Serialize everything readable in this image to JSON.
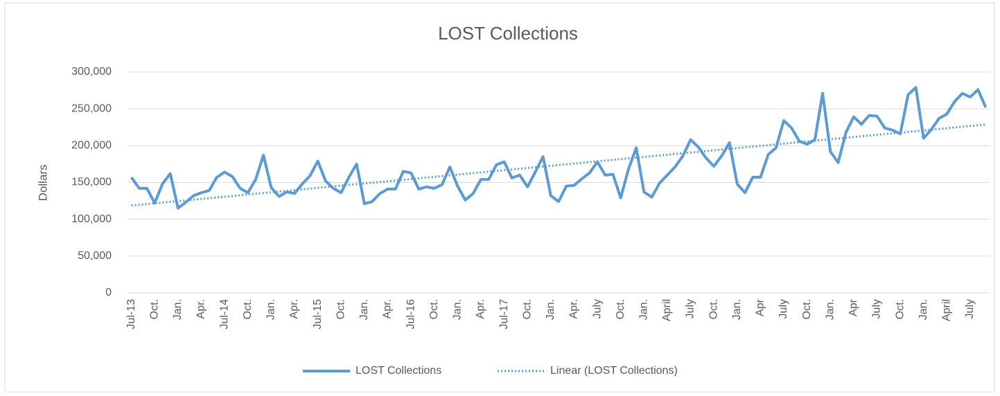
{
  "chart_data": {
    "type": "line",
    "title": "LOST Collections",
    "y_label": "Dollars",
    "categories": [
      "Jul-13",
      null,
      null,
      "Oct.",
      null,
      null,
      "Jan.",
      null,
      null,
      "Apr.",
      null,
      null,
      "Jul-14",
      null,
      null,
      "Oct.",
      null,
      null,
      "Jan.",
      null,
      null,
      "Apr.",
      null,
      null,
      "Jul-15",
      null,
      null,
      "Oct.",
      null,
      null,
      "Jan.",
      null,
      null,
      "Apr.",
      null,
      null,
      "Jul-16",
      null,
      null,
      "Oct.",
      null,
      null,
      "Jan.",
      null,
      null,
      "Apr.",
      null,
      null,
      "Jul-17",
      null,
      null,
      "Oct.",
      null,
      null,
      "Jan.",
      null,
      null,
      "Apr.",
      null,
      null,
      "July",
      null,
      null,
      "Oct.",
      null,
      null,
      "Jan.",
      null,
      null,
      "April",
      null,
      null,
      "July",
      null,
      null,
      "Oct.",
      null,
      null,
      "Jan.",
      null,
      null,
      "Apr",
      null,
      null,
      "July",
      null,
      null,
      "Oct.",
      null,
      null,
      "Jan.",
      null,
      null,
      "Apr",
      null,
      null,
      "July",
      null,
      null,
      "Oct.",
      null,
      null,
      "Jan.",
      null,
      null,
      "April",
      null,
      null,
      "July",
      null,
      null
    ],
    "series": [
      {
        "name": "LOST Collections",
        "color": "#5b9bd5",
        "values": [
          157000,
          142000,
          142000,
          122000,
          148000,
          162000,
          115000,
          123000,
          132000,
          136000,
          139000,
          157000,
          164000,
          158000,
          142000,
          136000,
          154000,
          187000,
          143000,
          131000,
          137000,
          135000,
          148000,
          159000,
          179000,
          152000,
          142000,
          136000,
          157000,
          175000,
          121000,
          124000,
          135000,
          141000,
          141000,
          165000,
          163000,
          141000,
          144000,
          142000,
          147000,
          171000,
          145000,
          126000,
          135000,
          154000,
          154000,
          174000,
          178000,
          156000,
          160000,
          144000,
          164000,
          185000,
          132000,
          124000,
          145000,
          146000,
          155000,
          163000,
          178000,
          160000,
          161000,
          129000,
          168000,
          197000,
          137000,
          130000,
          149000,
          160000,
          171000,
          186000,
          208000,
          198000,
          183000,
          172000,
          186000,
          204000,
          148000,
          136000,
          157000,
          157000,
          188000,
          197000,
          234000,
          224000,
          206000,
          202000,
          208000,
          271000,
          192000,
          177000,
          218000,
          239000,
          229000,
          241000,
          240000,
          224000,
          221000,
          216000,
          269000,
          279000,
          210000,
          222000,
          237000,
          243000,
          260000,
          271000,
          266000,
          276000,
          252000
        ]
      }
    ],
    "trendline": {
      "type": "linear",
      "name": "Linear (LOST Collections)",
      "color": "#5b9bd5"
    },
    "ylim": [
      0,
      300000
    ],
    "yticks": [
      0,
      {
        "value": 50000,
        "label": "50,000"
      },
      {
        "value": 100000,
        "label": "100,000"
      },
      {
        "value": 150000,
        "label": "150,000"
      },
      {
        "value": 200000,
        "label": "200,000"
      },
      {
        "value": 250000,
        "label": "250,000"
      },
      {
        "value": 300000,
        "label": "300,000"
      }
    ],
    "grid": true,
    "legend": "bottom"
  }
}
